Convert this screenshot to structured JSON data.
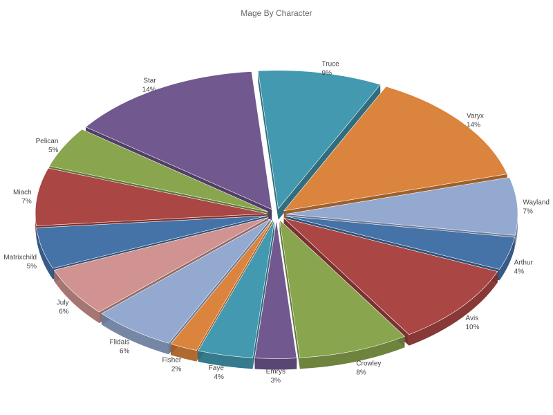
{
  "chart_data": {
    "type": "pie",
    "title": "Mage By Character",
    "slices": [
      {
        "label": "Truce",
        "value": 9,
        "value_label": "9%",
        "color": "#4299b0"
      },
      {
        "label": "Varyx",
        "value": 14,
        "value_label": "14%",
        "color": "#db843d"
      },
      {
        "label": "Wayland",
        "value": 7,
        "value_label": "7%",
        "color": "#93a9d0"
      },
      {
        "label": "Arthur",
        "value": 4,
        "value_label": "4%",
        "color": "#4572a7"
      },
      {
        "label": "Avis",
        "value": 10,
        "value_label": "10%",
        "color": "#aa4643"
      },
      {
        "label": "Crowley",
        "value": 8,
        "value_label": "8%",
        "color": "#89a54e"
      },
      {
        "label": "Emrys",
        "value": 3,
        "value_label": "3%",
        "color": "#71588f"
      },
      {
        "label": "Faye",
        "value": 4,
        "value_label": "4%",
        "color": "#4299b0"
      },
      {
        "label": "Fisher",
        "value": 2,
        "value_label": "2%",
        "color": "#db843d"
      },
      {
        "label": "Flidais",
        "value": 6,
        "value_label": "6%",
        "color": "#93a9d0"
      },
      {
        "label": "July",
        "value": 6,
        "value_label": "6%",
        "color": "#d09391"
      },
      {
        "label": "Matrixchild",
        "value": 5,
        "value_label": "5%",
        "color": "#4572a7"
      },
      {
        "label": "Miach",
        "value": 7,
        "value_label": "7%",
        "color": "#aa4643"
      },
      {
        "label": "Pelican",
        "value": 5,
        "value_label": "5%",
        "color": "#89a54e"
      },
      {
        "label": "Star",
        "value": 14,
        "value_label": "14%",
        "color": "#71588f"
      }
    ]
  }
}
